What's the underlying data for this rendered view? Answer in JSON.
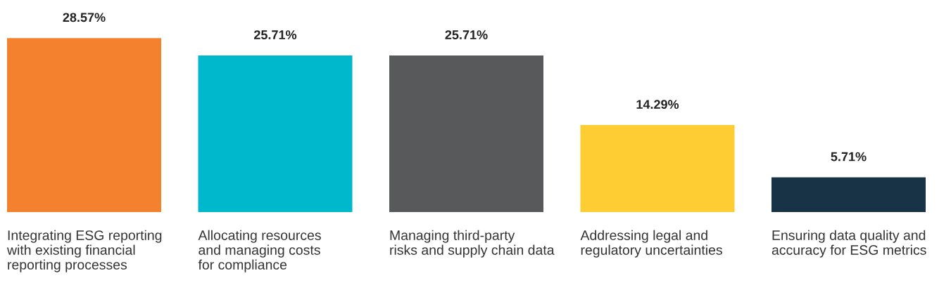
{
  "chart_data": {
    "type": "bar",
    "categories": [
      "Integrating ESG reporting\nwith existing financial\nreporting processes",
      "Allocating resources\nand managing costs\nfor compliance",
      "Managing third-party\nrisks and supply chain data",
      "Addressing legal and\nregulatory uncertainties",
      "Ensuring data quality and\naccuracy for ESG metrics"
    ],
    "values": [
      28.57,
      25.71,
      25.71,
      14.29,
      5.71
    ],
    "colors": [
      "#f4812e",
      "#00b8cc",
      "#58595b",
      "#fdcd33",
      "#183246"
    ],
    "value_labels": [
      "28.57%",
      "25.71%",
      "25.71%",
      "14.29%",
      "5.71%"
    ],
    "tick_labels": false
  }
}
